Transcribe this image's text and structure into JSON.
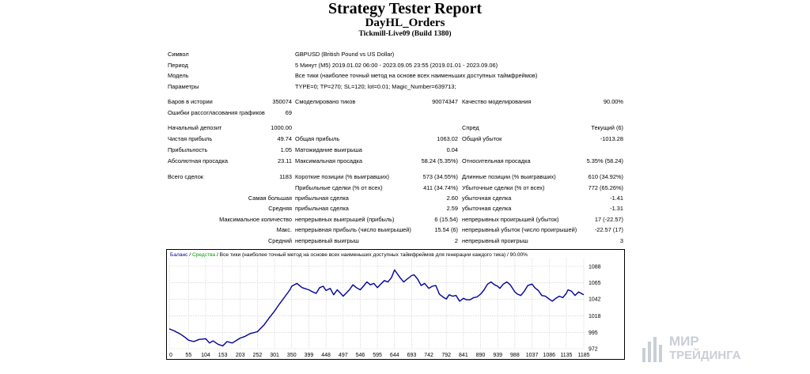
{
  "header": {
    "title": "Strategy Tester Report",
    "subtitle": "DayHL_Orders",
    "server": "Tickmill-Live09 (Build 1380)"
  },
  "info": {
    "symbol_label": "Символ",
    "symbol_value": "GBPUSD (British Pound vs US Dollar)",
    "period_label": "Период",
    "period_value": "5 Минут (M5) 2019.01.02 06:00 - 2023.09.05 23:55 (2019.01.01 - 2023.09.06)",
    "model_label": "Модель",
    "model_value": "Все тики (наиболее точный метод на основе всех наименьших доступных таймфреймов)",
    "params_label": "Параметры",
    "params_value": "TYPE=0; TP=270; SL=120; lot=0.01; Magic_Number=639713;"
  },
  "stats": {
    "bars_label": "Баров в истории",
    "bars_value": "350074",
    "ticks_label": "Смоделировано тиков",
    "ticks_value": "90074347",
    "quality_label": "Качество моделирования",
    "quality_value": "90.00%",
    "mismatch_label": "Ошибки рассогласования графиков",
    "mismatch_value": "69",
    "deposit_label": "Начальный депозит",
    "deposit_value": "1000.00",
    "spread_label": "Спред",
    "spread_value": "Текущий (6)",
    "net_label": "Чистая прибыль",
    "net_value": "49.74",
    "gross_profit_label": "Общая прибыль",
    "gross_profit_value": "1063.02",
    "gross_loss_label": "Общий убыток",
    "gross_loss_value": "-1013.28",
    "pf_label": "Прибыльность",
    "pf_value": "1.05",
    "payoff_label": "Матожидание выигрыша",
    "payoff_value": "0.04",
    "abs_dd_label": "Абсолютная просадка",
    "abs_dd_value": "23.11",
    "max_dd_label": "Максимальная просадка",
    "max_dd_value": "58.24 (5.35%)",
    "rel_dd_label": "Относительная просадка",
    "rel_dd_value": "5.35% (58.24)",
    "trades_label": "Всего сделок",
    "trades_value": "1183",
    "short_label": "Короткие позиции (% выигравших)",
    "short_value": "573 (34.55%)",
    "long_label": "Длинные позиции (% выигравших)",
    "long_value": "610 (34.92%)",
    "win_label": "Прибыльные сделки (% от всех)",
    "win_value": "411 (34.74%)",
    "loss_label": "Убыточные сделки (% от всех)",
    "loss_value": "772 (65.26%)",
    "largest_label": "Самая большая",
    "largest_win_label": "прибыльная сделка",
    "largest_win_value": "2.60",
    "largest_loss_label": "убыточная сделка",
    "largest_loss_value": "-1.41",
    "avg_label": "Средняя",
    "avg_win_label": "прибыльная сделка",
    "avg_win_value": "2.59",
    "avg_loss_label": "убыточная сделка",
    "avg_loss_value": "-1.31",
    "maxcount_label": "Максимальное количество",
    "maxcount_win_label": "непрерывных выигрышей (прибыль)",
    "maxcount_win_value": "6 (15.54)",
    "maxcount_loss_label": "непрерывных проигрышей (убыток)",
    "maxcount_loss_value": "17 (-22.57)",
    "maxprofit_label": "Макс.",
    "maxprofit_win_label": "непрерывная прибыль (число выигрышей)",
    "maxprofit_win_value": "15.54 (6)",
    "maxprofit_loss_label": "непрерывный убыток (число проигрышей)",
    "maxprofit_loss_value": "-22.57 (17)",
    "avgcons_label": "Средний",
    "avgcons_win_label": "непрерывный выигрыш",
    "avgcons_win_value": "2",
    "avgcons_loss_label": "непрерывный проигрыш",
    "avgcons_loss_value": "3"
  },
  "chart_legend": {
    "balance": "Баланс",
    "sep1": " / ",
    "equity": "Средства",
    "rest": " / Все тики (наиболее точный метод на основе всех наименьших доступных таймфреймов для генерации каждого тика) / 90.00%"
  },
  "watermark": {
    "line1": "МИР",
    "line2": "ТРЕЙДИНГА"
  },
  "colors": {
    "balance": "#00009c",
    "equity": "#00a000",
    "grid": "#c6c6c6",
    "watermark": "#c9cfd6"
  },
  "chart_data": {
    "type": "line",
    "title": "Баланс / Средства / Все тики (наиболее точный метод на основе всех наименьших доступных таймфреймов для генерации каждого тика) / 90.00%",
    "xlabel": "",
    "ylabel": "",
    "x_ticks": [
      0,
      55,
      104,
      153,
      203,
      252,
      301,
      350,
      399,
      448,
      497,
      546,
      595,
      644,
      693,
      742,
      792,
      841,
      890,
      939,
      988,
      1037,
      1086,
      1135,
      1185
    ],
    "y_ticks": [
      1088,
      1065,
      1042,
      1018,
      995,
      972
    ],
    "xlim": [
      0,
      1185
    ],
    "ylim": [
      972,
      1099
    ],
    "series": [
      {
        "name": "Баланс",
        "x": [
          0,
          15,
          30,
          45,
          55,
          70,
          85,
          104,
          115,
          125,
          140,
          153,
          165,
          180,
          203,
          215,
          230,
          252,
          270,
          285,
          301,
          315,
          330,
          345,
          350,
          365,
          380,
          399,
          410,
          420,
          430,
          440,
          448,
          460,
          470,
          480,
          490,
          497,
          505,
          515,
          525,
          535,
          546,
          555,
          565,
          575,
          585,
          595,
          605,
          615,
          625,
          635,
          644,
          650,
          660,
          670,
          680,
          693,
          700,
          710,
          720,
          730,
          742,
          752,
          762,
          772,
          782,
          792,
          800,
          810,
          820,
          830,
          841,
          850,
          860,
          870,
          880,
          890,
          900,
          910,
          920,
          930,
          939,
          945,
          955,
          965,
          975,
          988,
          995,
          1005,
          1015,
          1025,
          1037,
          1045,
          1055,
          1065,
          1075,
          1086,
          1095,
          1105,
          1115,
          1125,
          1135,
          1140,
          1150,
          1160,
          1170,
          1185
        ],
        "values": [
          1000,
          997,
          993,
          988,
          984,
          982,
          985,
          986,
          980,
          983,
          978,
          976,
          982,
          980,
          987,
          989,
          993,
          996,
          1005,
          1015,
          1025,
          1035,
          1045,
          1055,
          1060,
          1064,
          1058,
          1055,
          1052,
          1050,
          1058,
          1060,
          1054,
          1057,
          1048,
          1055,
          1050,
          1046,
          1050,
          1055,
          1062,
          1058,
          1055,
          1060,
          1066,
          1062,
          1064,
          1058,
          1063,
          1068,
          1066,
          1072,
          1083,
          1079,
          1072,
          1066,
          1070,
          1075,
          1076,
          1070,
          1061,
          1064,
          1057,
          1060,
          1061,
          1049,
          1045,
          1042,
          1048,
          1046,
          1047,
          1039,
          1043,
          1041,
          1041,
          1044,
          1045,
          1049,
          1055,
          1063,
          1066,
          1062,
          1060,
          1057,
          1063,
          1066,
          1062,
          1052,
          1049,
          1047,
          1053,
          1061,
          1063,
          1058,
          1054,
          1047,
          1046,
          1042,
          1039,
          1043,
          1046,
          1044,
          1050,
          1055,
          1053,
          1047,
          1052,
          1048
        ]
      }
    ]
  }
}
